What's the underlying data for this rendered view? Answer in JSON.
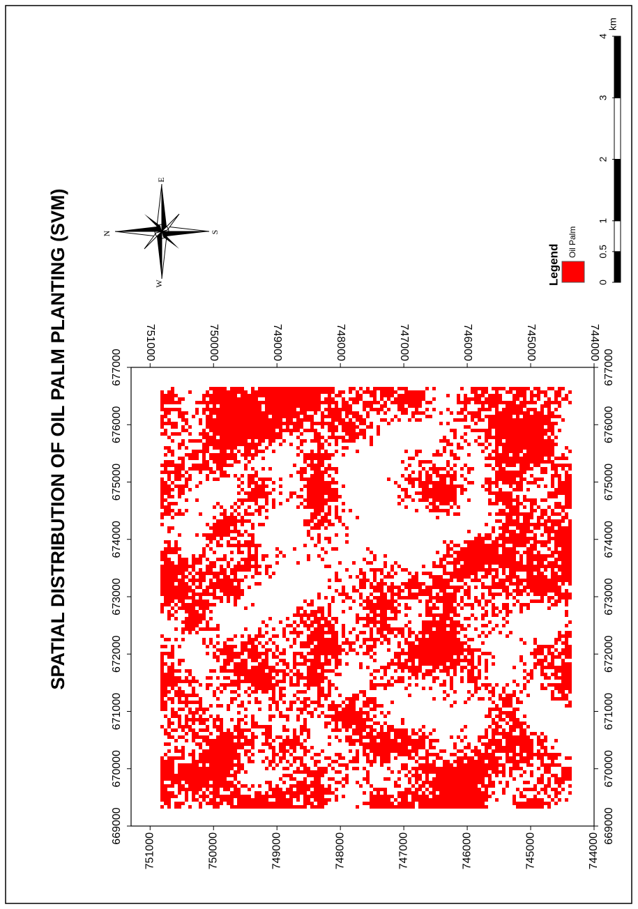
{
  "title": "SPATIAL DISTRIBUTION OF OIL PALM PLANTING (SVM)",
  "map": {
    "xlim": [
      669000,
      677000
    ],
    "xticks": [
      669000,
      670000,
      671000,
      672000,
      673000,
      674000,
      675000,
      676000,
      677000
    ],
    "ylim": [
      744000,
      751300
    ],
    "yticks": [
      751000,
      750000,
      749000,
      748000,
      747000,
      746000,
      745000,
      744000
    ]
  },
  "legend": {
    "title": "Legend",
    "items": [
      {
        "label": "Oil Palm",
        "color": "#ff0000"
      }
    ]
  },
  "compass": {
    "n": "N",
    "e": "E",
    "s": "S",
    "w": "W"
  },
  "scale_bar": {
    "ticks": [
      0,
      0.5,
      1,
      2,
      3,
      4
    ],
    "unit": "km"
  }
}
